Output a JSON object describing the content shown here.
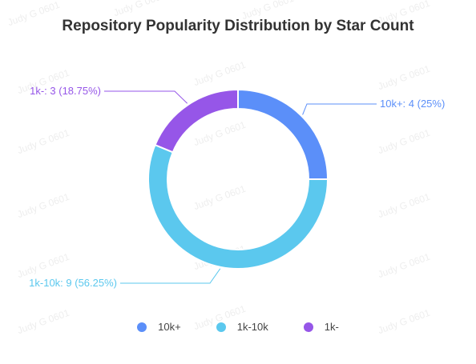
{
  "watermark": "Judy G 0601",
  "chart_data": {
    "type": "pie",
    "title": "Repository Popularity Distribution by Star Count",
    "series": [
      {
        "name": "10k+",
        "value": 4,
        "percent": 25,
        "label": "10k+: 4 (25%)",
        "color": "#5B8FF9"
      },
      {
        "name": "1k-10k",
        "value": 9,
        "percent": 56.25,
        "label": "1k-10k: 9 (56.25%)",
        "color": "#5BC8EE"
      },
      {
        "name": "1k-",
        "value": 3,
        "percent": 18.75,
        "label": "1k-: 3 (18.75%)",
        "color": "#9656E8"
      }
    ],
    "legend_position": "bottom",
    "donut": true
  }
}
